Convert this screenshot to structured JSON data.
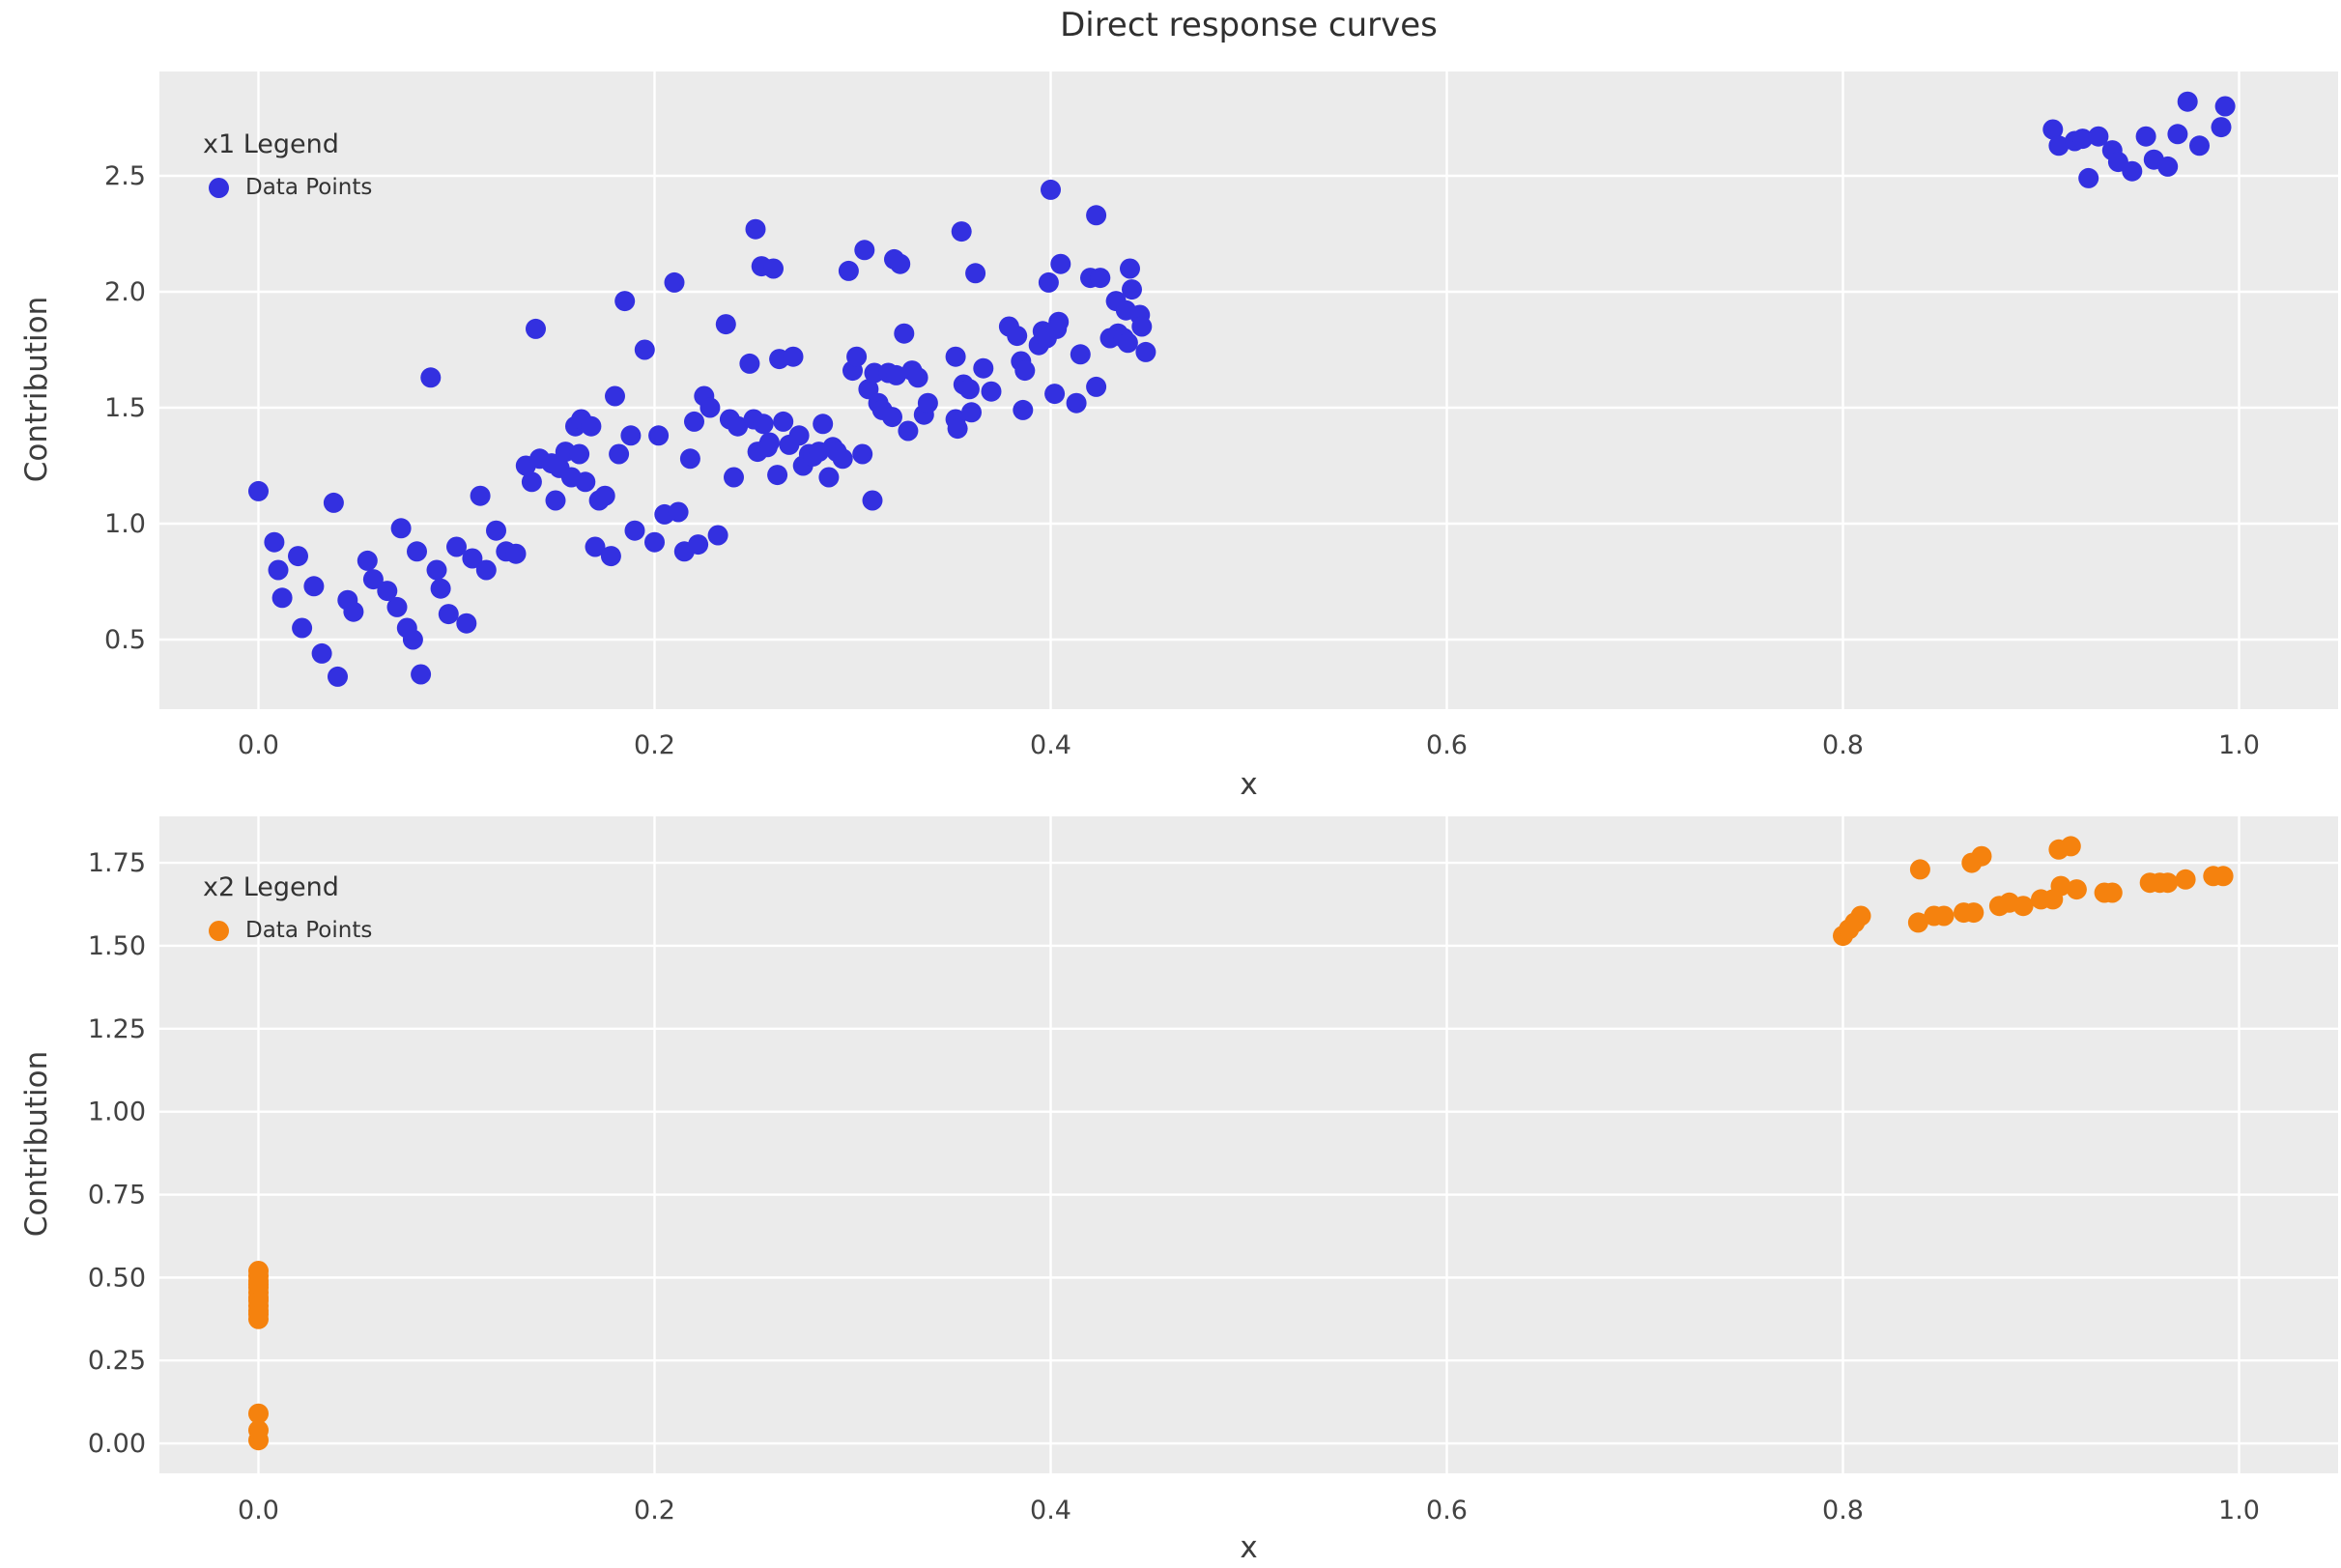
{
  "figure": {
    "title": "Direct response curves"
  },
  "styles": {
    "background": "#ffffff",
    "plot_background": "#ebebeb",
    "grid_color": "#ffffff",
    "tick_color": "#424242",
    "title_color": "#303030",
    "blue": "#3330e0",
    "orange": "#f5820e"
  },
  "chart_data": [
    {
      "type": "scatter",
      "series_name": "x1",
      "legend_title": "x1 Legend",
      "legend_label": "Data Points",
      "marker_color": "#3330e0",
      "xlabel": "x",
      "ylabel": "Contribution",
      "xlim": [
        -0.05,
        1.05
      ],
      "ylim": [
        0.2,
        2.95
      ],
      "xticks": [
        0.0,
        0.2,
        0.4,
        0.6,
        0.8,
        1.0
      ],
      "xtick_labels": [
        "0.0",
        "0.2",
        "0.4",
        "0.6",
        "0.8",
        "1.0"
      ],
      "yticks": [
        0.5,
        1.0,
        1.5,
        2.0,
        2.5
      ],
      "ytick_labels": [
        "0.5",
        "1.0",
        "1.5",
        "2.0",
        "2.5"
      ],
      "grid": true,
      "legend_position": "upper-left",
      "points": [
        [
          0.0,
          1.14
        ],
        [
          0.008,
          0.92
        ],
        [
          0.01,
          0.8
        ],
        [
          0.012,
          0.68
        ],
        [
          0.02,
          0.86
        ],
        [
          0.022,
          0.55
        ],
        [
          0.028,
          0.73
        ],
        [
          0.032,
          0.44
        ],
        [
          0.038,
          1.09
        ],
        [
          0.04,
          0.34
        ],
        [
          0.045,
          0.67
        ],
        [
          0.048,
          0.62
        ],
        [
          0.055,
          0.84
        ],
        [
          0.058,
          0.76
        ],
        [
          0.065,
          0.71
        ],
        [
          0.07,
          0.64
        ],
        [
          0.072,
          0.98
        ],
        [
          0.075,
          0.55
        ],
        [
          0.078,
          0.5
        ],
        [
          0.08,
          0.88
        ],
        [
          0.082,
          0.35
        ],
        [
          0.087,
          1.63
        ],
        [
          0.09,
          0.8
        ],
        [
          0.092,
          0.72
        ],
        [
          0.096,
          0.61
        ],
        [
          0.1,
          0.9
        ],
        [
          0.105,
          0.57
        ],
        [
          0.108,
          0.85
        ],
        [
          0.112,
          1.12
        ],
        [
          0.115,
          0.8
        ],
        [
          0.12,
          0.97
        ],
        [
          0.125,
          0.88
        ],
        [
          0.13,
          0.87
        ],
        [
          0.135,
          1.25
        ],
        [
          0.138,
          1.18
        ],
        [
          0.14,
          1.84
        ],
        [
          0.142,
          1.28
        ],
        [
          0.148,
          1.26
        ],
        [
          0.15,
          1.1
        ],
        [
          0.152,
          1.24
        ],
        [
          0.155,
          1.31
        ],
        [
          0.158,
          1.2
        ],
        [
          0.16,
          1.42
        ],
        [
          0.162,
          1.3
        ],
        [
          0.163,
          1.45
        ],
        [
          0.165,
          1.18
        ],
        [
          0.168,
          1.42
        ],
        [
          0.17,
          0.9
        ],
        [
          0.172,
          1.1
        ],
        [
          0.175,
          1.12
        ],
        [
          0.178,
          0.86
        ],
        [
          0.18,
          1.55
        ],
        [
          0.182,
          1.3
        ],
        [
          0.185,
          1.96
        ],
        [
          0.188,
          1.38
        ],
        [
          0.19,
          0.97
        ],
        [
          0.195,
          1.75
        ],
        [
          0.2,
          0.92
        ],
        [
          0.202,
          1.38
        ],
        [
          0.205,
          1.04
        ],
        [
          0.21,
          2.04
        ],
        [
          0.212,
          1.05
        ],
        [
          0.215,
          0.88
        ],
        [
          0.218,
          1.28
        ],
        [
          0.22,
          1.44
        ],
        [
          0.222,
          0.91
        ],
        [
          0.225,
          1.55
        ],
        [
          0.228,
          1.5
        ],
        [
          0.232,
          0.95
        ],
        [
          0.236,
          1.86
        ],
        [
          0.238,
          1.45
        ],
        [
          0.24,
          1.2
        ],
        [
          0.242,
          1.42
        ],
        [
          0.248,
          1.69
        ],
        [
          0.25,
          1.45
        ],
        [
          0.251,
          2.27
        ],
        [
          0.252,
          1.31
        ],
        [
          0.254,
          2.11
        ],
        [
          0.255,
          1.43
        ],
        [
          0.257,
          1.33
        ],
        [
          0.258,
          1.35
        ],
        [
          0.26,
          2.1
        ],
        [
          0.262,
          1.21
        ],
        [
          0.263,
          1.71
        ],
        [
          0.265,
          1.44
        ],
        [
          0.268,
          1.34
        ],
        [
          0.27,
          1.72
        ],
        [
          0.273,
          1.38
        ],
        [
          0.275,
          1.25
        ],
        [
          0.278,
          1.3
        ],
        [
          0.28,
          1.29
        ],
        [
          0.283,
          1.31
        ],
        [
          0.285,
          1.43
        ],
        [
          0.288,
          1.2
        ],
        [
          0.29,
          1.33
        ],
        [
          0.292,
          1.31
        ],
        [
          0.295,
          1.28
        ],
        [
          0.298,
          2.09
        ],
        [
          0.3,
          1.66
        ],
        [
          0.302,
          1.72
        ],
        [
          0.305,
          1.3
        ],
        [
          0.306,
          2.18
        ],
        [
          0.308,
          1.58
        ],
        [
          0.31,
          1.1
        ],
        [
          0.311,
          1.65
        ],
        [
          0.313,
          1.52
        ],
        [
          0.315,
          1.49
        ],
        [
          0.318,
          1.65
        ],
        [
          0.32,
          1.46
        ],
        [
          0.321,
          2.14
        ],
        [
          0.322,
          1.64
        ],
        [
          0.324,
          2.12
        ],
        [
          0.326,
          1.82
        ],
        [
          0.328,
          1.4
        ],
        [
          0.33,
          1.66
        ],
        [
          0.333,
          1.63
        ],
        [
          0.336,
          1.47
        ],
        [
          0.338,
          1.52
        ],
        [
          0.352,
          1.45
        ],
        [
          0.352,
          1.72
        ],
        [
          0.353,
          1.41
        ],
        [
          0.355,
          2.26
        ],
        [
          0.356,
          1.6
        ],
        [
          0.359,
          1.58
        ],
        [
          0.36,
          1.48
        ],
        [
          0.362,
          2.08
        ],
        [
          0.366,
          1.67
        ],
        [
          0.37,
          1.57
        ],
        [
          0.379,
          1.85
        ],
        [
          0.383,
          1.81
        ],
        [
          0.385,
          1.7
        ],
        [
          0.386,
          1.49
        ],
        [
          0.387,
          1.66
        ],
        [
          0.394,
          1.77
        ],
        [
          0.396,
          1.83
        ],
        [
          0.398,
          1.8
        ],
        [
          0.399,
          2.04
        ],
        [
          0.4,
          2.44
        ],
        [
          0.402,
          1.56
        ],
        [
          0.403,
          1.84
        ],
        [
          0.404,
          1.87
        ],
        [
          0.405,
          2.12
        ],
        [
          0.413,
          1.52
        ],
        [
          0.415,
          1.73
        ],
        [
          0.42,
          2.06
        ],
        [
          0.423,
          1.59
        ],
        [
          0.423,
          2.33
        ],
        [
          0.425,
          2.06
        ],
        [
          0.43,
          1.8
        ],
        [
          0.433,
          1.96
        ],
        [
          0.434,
          1.82
        ],
        [
          0.437,
          1.8
        ],
        [
          0.438,
          1.92
        ],
        [
          0.439,
          1.78
        ],
        [
          0.44,
          2.1
        ],
        [
          0.441,
          2.01
        ],
        [
          0.445,
          1.9
        ],
        [
          0.446,
          1.85
        ],
        [
          0.448,
          1.74
        ],
        [
          0.906,
          2.7
        ],
        [
          0.909,
          2.63
        ],
        [
          0.917,
          2.65
        ],
        [
          0.921,
          2.66
        ],
        [
          0.924,
          2.49
        ],
        [
          0.929,
          2.67
        ],
        [
          0.936,
          2.61
        ],
        [
          0.939,
          2.56
        ],
        [
          0.946,
          2.52
        ],
        [
          0.953,
          2.67
        ],
        [
          0.957,
          2.57
        ],
        [
          0.964,
          2.54
        ],
        [
          0.969,
          2.68
        ],
        [
          0.974,
          2.82
        ],
        [
          0.98,
          2.63
        ],
        [
          0.991,
          2.71
        ],
        [
          0.993,
          2.8
        ]
      ]
    },
    {
      "type": "scatter",
      "series_name": "x2",
      "legend_title": "x2 Legend",
      "legend_label": "Data Points",
      "marker_color": "#f5820e",
      "xlabel": "x",
      "ylabel": "Contribution",
      "xlim": [
        -0.05,
        1.05
      ],
      "ylim": [
        -0.09,
        1.89
      ],
      "xticks": [
        0.0,
        0.2,
        0.4,
        0.6,
        0.8,
        1.0
      ],
      "xtick_labels": [
        "0.0",
        "0.2",
        "0.4",
        "0.6",
        "0.8",
        "1.0"
      ],
      "yticks": [
        0.0,
        0.25,
        0.5,
        0.75,
        1.0,
        1.25,
        1.5,
        1.75
      ],
      "ytick_labels": [
        "0.00",
        "0.25",
        "0.50",
        "0.75",
        "1.00",
        "1.25",
        "1.50",
        "1.75"
      ],
      "grid": true,
      "legend_position": "upper-left",
      "points": [
        [
          0.0,
          0.01
        ],
        [
          0.0,
          0.04
        ],
        [
          0.0,
          0.09
        ],
        [
          0.0,
          0.375
        ],
        [
          0.0,
          0.39
        ],
        [
          0.0,
          0.4
        ],
        [
          0.0,
          0.415
        ],
        [
          0.0,
          0.43
        ],
        [
          0.0,
          0.44
        ],
        [
          0.0,
          0.455
        ],
        [
          0.0,
          0.47
        ],
        [
          0.0,
          0.48
        ],
        [
          0.0,
          0.49
        ],
        [
          0.0,
          0.505
        ],
        [
          0.0,
          0.52
        ],
        [
          0.8,
          1.53
        ],
        [
          0.803,
          1.55
        ],
        [
          0.806,
          1.57
        ],
        [
          0.809,
          1.59
        ],
        [
          0.838,
          1.57
        ],
        [
          0.839,
          1.73
        ],
        [
          0.846,
          1.59
        ],
        [
          0.851,
          1.59
        ],
        [
          0.861,
          1.6
        ],
        [
          0.865,
          1.75
        ],
        [
          0.866,
          1.6
        ],
        [
          0.87,
          1.77
        ],
        [
          0.879,
          1.62
        ],
        [
          0.884,
          1.63
        ],
        [
          0.891,
          1.62
        ],
        [
          0.9,
          1.64
        ],
        [
          0.906,
          1.64
        ],
        [
          0.909,
          1.79
        ],
        [
          0.91,
          1.68
        ],
        [
          0.915,
          1.8
        ],
        [
          0.918,
          1.67
        ],
        [
          0.932,
          1.66
        ],
        [
          0.936,
          1.66
        ],
        [
          0.955,
          1.69
        ],
        [
          0.96,
          1.69
        ],
        [
          0.964,
          1.69
        ],
        [
          0.973,
          1.7
        ],
        [
          0.987,
          1.71
        ],
        [
          0.992,
          1.71
        ]
      ]
    }
  ]
}
